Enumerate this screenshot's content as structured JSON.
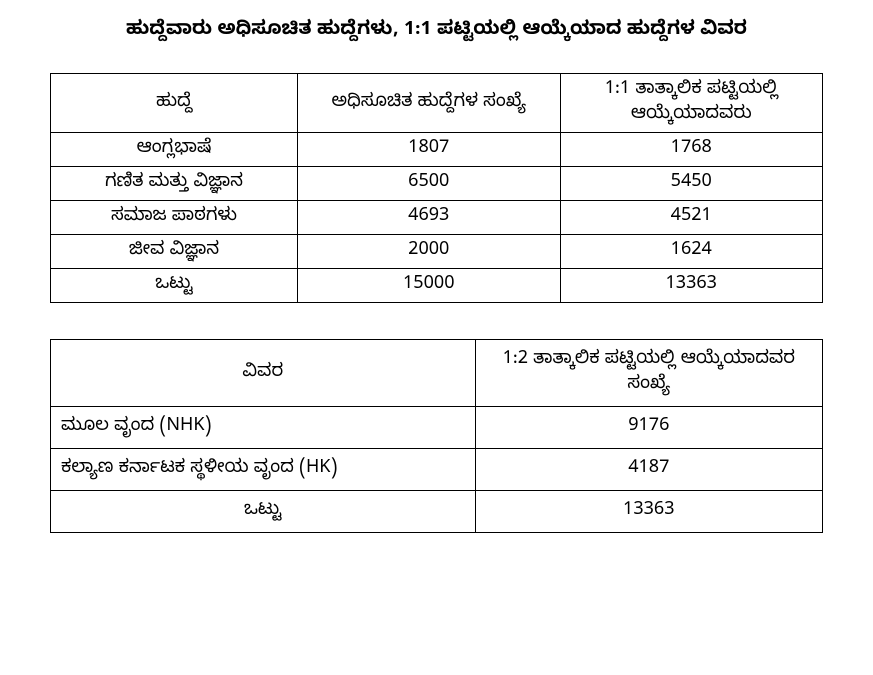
{
  "title": "ಹುದ್ದೆವಾರು ಅಧಿಸೂಚಿತ ಹುದ್ದೆಗಳು, 1:1 ಪಟ್ಟಿಯಲ್ಲಿ ಆಯ್ಕೆಯಾದ ಹುದ್ದೆಗಳ ವಿವರ",
  "table1": {
    "columns": [
      "ಹುದ್ದೆ",
      "ಅಧಿಸೂಚಿತ ಹುದ್ದೆಗಳ ಸಂಖ್ಯೆ",
      "1:1 ತಾತ್ಕಾಲಿಕ ಪಟ್ಟಿಯಲ್ಲಿ ಆಯ್ಕೆಯಾದವರು"
    ],
    "rows": [
      [
        "ಆಂಗ್ಲಭಾಷೆ",
        "1807",
        "1768"
      ],
      [
        "ಗಣಿತ ಮತ್ತು ವಿಜ್ಞಾನ",
        "6500",
        "5450"
      ],
      [
        "ಸಮಾಜ ಪಾಠಗಳು",
        "4693",
        "4521"
      ],
      [
        "ಜೀವ ವಿಜ್ಞಾನ",
        "2000",
        "1624"
      ],
      [
        "ಒಟ್ಟು",
        "15000",
        "13363"
      ]
    ],
    "col_widths_pct": [
      32,
      34,
      34
    ],
    "border_color": "#000000",
    "font_size_pt": 18,
    "text_align_cols": [
      "center",
      "center",
      "center"
    ]
  },
  "table2": {
    "columns": [
      "ವಿವರ",
      "1:2 ತಾತ್ಕಾಲಿಕ ಪಟ್ಟಿಯಲ್ಲಿ ಆಯ್ಕೆಯಾದವರ ಸಂಖ್ಯೆ"
    ],
    "rows": [
      [
        "ಮೂಲ ವೃಂದ  (NHK)",
        "9176"
      ],
      [
        "ಕಲ್ಯಾಣ ಕರ್ನಾಟಕ ಸ್ಥಳೀಯ ವೃಂದ (HK)",
        "4187"
      ],
      [
        "ಒಟ್ಟು",
        "13363"
      ]
    ],
    "col_widths_pct": [
      55,
      45
    ],
    "border_color": "#000000",
    "font_size_pt": 18,
    "text_align_cols": [
      "left",
      "center"
    ],
    "last_row_align": [
      "center",
      "center"
    ]
  },
  "page": {
    "background_color": "#ffffff",
    "text_color": "#000000",
    "title_fontsize_pt": 19,
    "title_fontweight": "bold"
  }
}
